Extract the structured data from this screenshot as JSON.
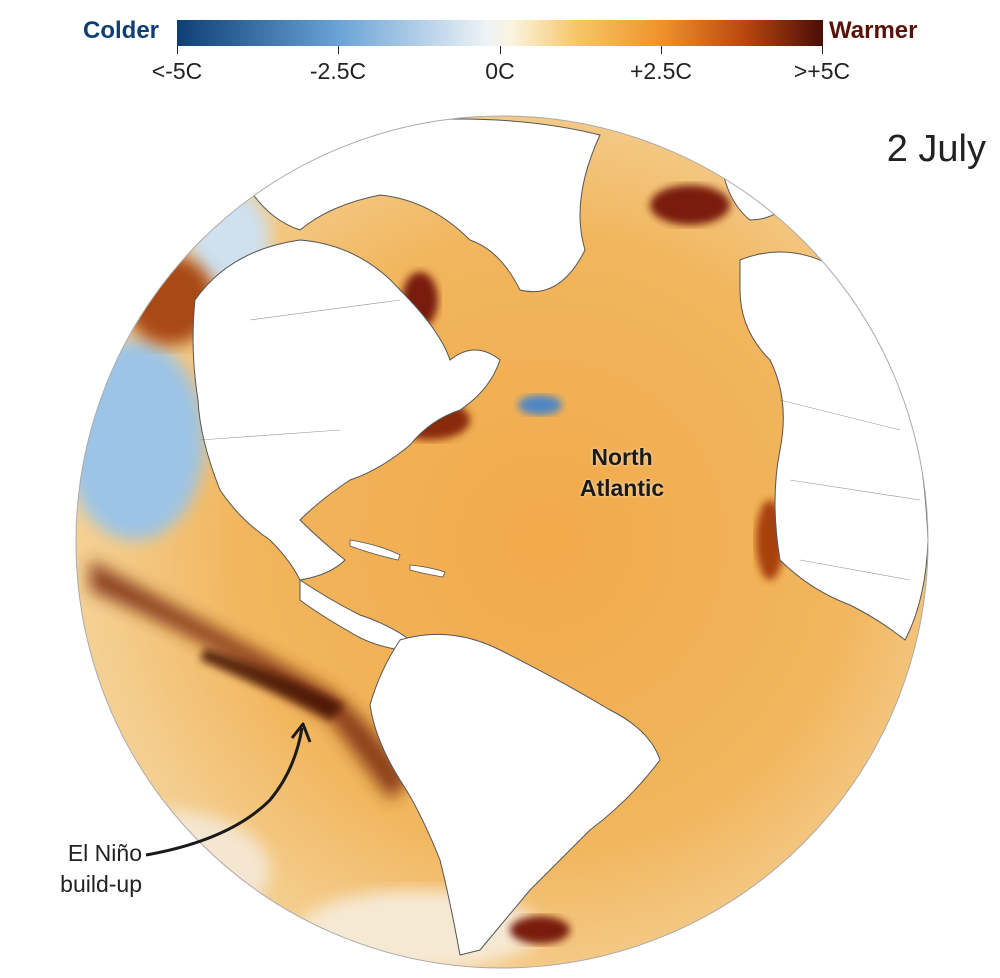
{
  "legend": {
    "colder_label": "Colder",
    "warmer_label": "Warmer",
    "ticks": [
      "<-5C",
      "-2.5C",
      "0C",
      "+2.5C",
      ">+5C"
    ],
    "colors": {
      "cold_end": "#0d3f74",
      "cold_mid": "#6aa3d6",
      "neutral": "#f7f4ee",
      "warm_mid": "#f29b2a",
      "warm_end": "#4a0d07"
    }
  },
  "date": "2 July",
  "annotations": {
    "north_atlantic_line1": "North",
    "north_atlantic_line2": "Atlantic",
    "el_nino_line1": "El Niño",
    "el_nino_line2": "build-up"
  }
}
